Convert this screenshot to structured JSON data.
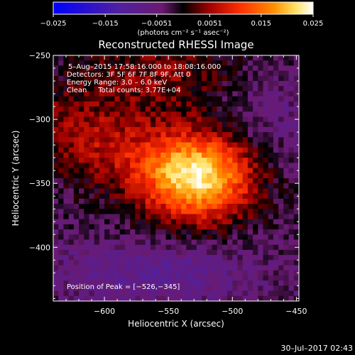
{
  "chart_data": {
    "type": "heatmap",
    "title": "Reconstructed RHESSI Image",
    "xlabel": "Heliocentric X (arcsec)",
    "ylabel": "Heliocentric Y (arcsec)",
    "xlim": [
      -640,
      -448
    ],
    "ylim": [
      -442,
      -250
    ],
    "x_ticks": [
      -600,
      -550,
      -500,
      -450
    ],
    "x_tick_labels": [
      "−600",
      "−550",
      "−500",
      "−450"
    ],
    "y_ticks": [
      -250,
      -300,
      -350,
      -400
    ],
    "y_tick_labels": [
      "−250",
      "−300",
      "−350",
      "−400"
    ],
    "colorbar": {
      "range": [
        -0.025,
        0.025
      ],
      "ticks": [
        -0.025,
        -0.015,
        -0.0051,
        0.0051,
        0.015,
        0.025
      ],
      "tick_labels": [
        "−0.025",
        "−0.015",
        "−0.0051",
        "0.0051",
        "0.015",
        "0.025"
      ],
      "unit_label": "(photons cm⁻² s⁻¹ asec⁻²)",
      "colors": [
        "#0000ff",
        "#5020a0",
        "#6a1a70",
        "#000000",
        "#a00000",
        "#ff3000",
        "#ff9000",
        "#ffe060",
        "#ffffff"
      ]
    },
    "annotations": [
      "5–Aug–2015 17:58:16.000 to 18:08:16.000",
      "Detectors: 3F 5F 6F 7F 8F 9F, Att 0",
      "Energy Range: 3.0 – 6.0 keV",
      "Clean     Total counts: 3.77E+04"
    ],
    "peak_label": "Position of Peak = [−526,−345]",
    "peak": [
      -526,
      -345
    ],
    "grid": false
  },
  "footer": {
    "timestamp": "30–Jul–2017 02:43"
  }
}
